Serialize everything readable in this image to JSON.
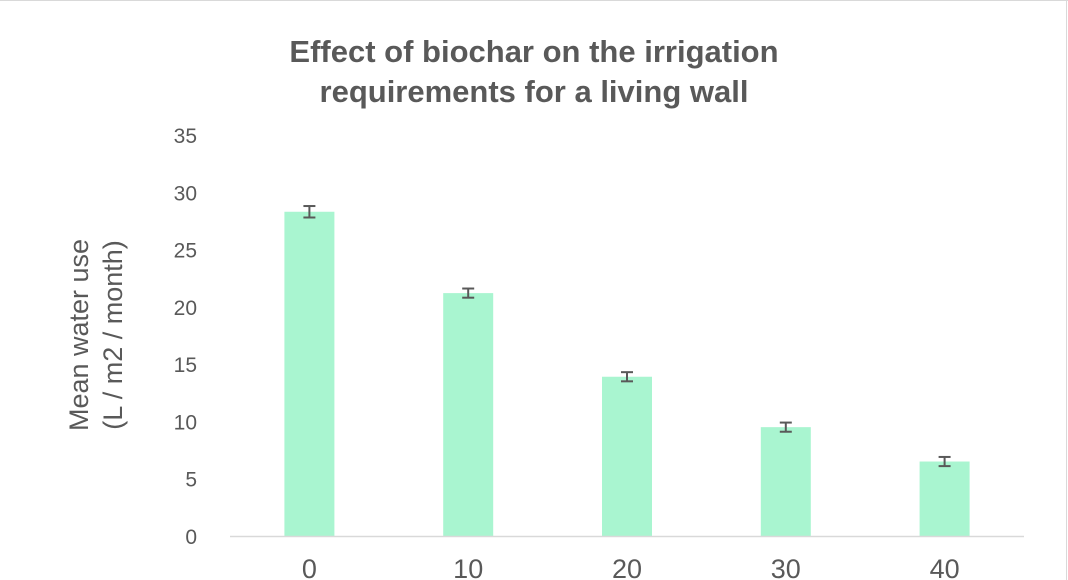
{
  "colors": {
    "bar": "#a9f5d0",
    "text": "#595959",
    "axis": "#d9d9d9",
    "error_bar": "#595959",
    "background": "#ffffff"
  },
  "chart_data": {
    "type": "bar",
    "title_lines": [
      "Effect of biochar on the irrigation",
      "requirements for a living wall"
    ],
    "ylabel_lines": [
      "Mean water use",
      "(L / m2 / month)"
    ],
    "xlabel": "",
    "categories": [
      "0",
      "10",
      "20",
      "30",
      "40"
    ],
    "values": [
      28.3,
      21.2,
      13.9,
      9.5,
      6.5
    ],
    "error": [
      0.5,
      0.4,
      0.4,
      0.4,
      0.4
    ],
    "ylim": [
      0,
      35
    ],
    "yticks": [
      "0",
      "5",
      "10",
      "15",
      "20",
      "25",
      "30",
      "35"
    ],
    "grid": false,
    "legend": "none"
  }
}
